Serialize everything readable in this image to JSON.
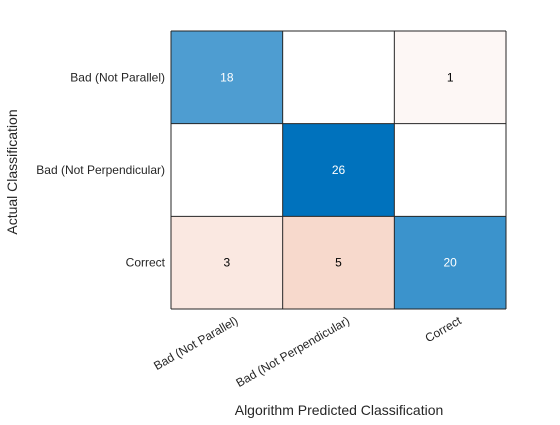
{
  "chart_data": {
    "type": "heatmap",
    "title": "",
    "xlabel": "Algorithm Predicted Classification",
    "ylabel": "Actual Classification",
    "x_categories": [
      "Bad (Not Parallel)",
      "Bad (Not Perpendicular)",
      "Correct"
    ],
    "y_categories": [
      "Bad (Not Parallel)",
      "Bad (Not Perpendicular)",
      "Correct"
    ],
    "matrix": [
      [
        18,
        null,
        1
      ],
      [
        null,
        26,
        null
      ],
      [
        3,
        5,
        20
      ]
    ],
    "colors": {
      "diagonal_max": "#0072bd",
      "offdiag_max": "#d95319",
      "empty": "#ffffff",
      "grid": "#262626",
      "text_dark": "#000000",
      "text_light": "#ffffff"
    }
  }
}
